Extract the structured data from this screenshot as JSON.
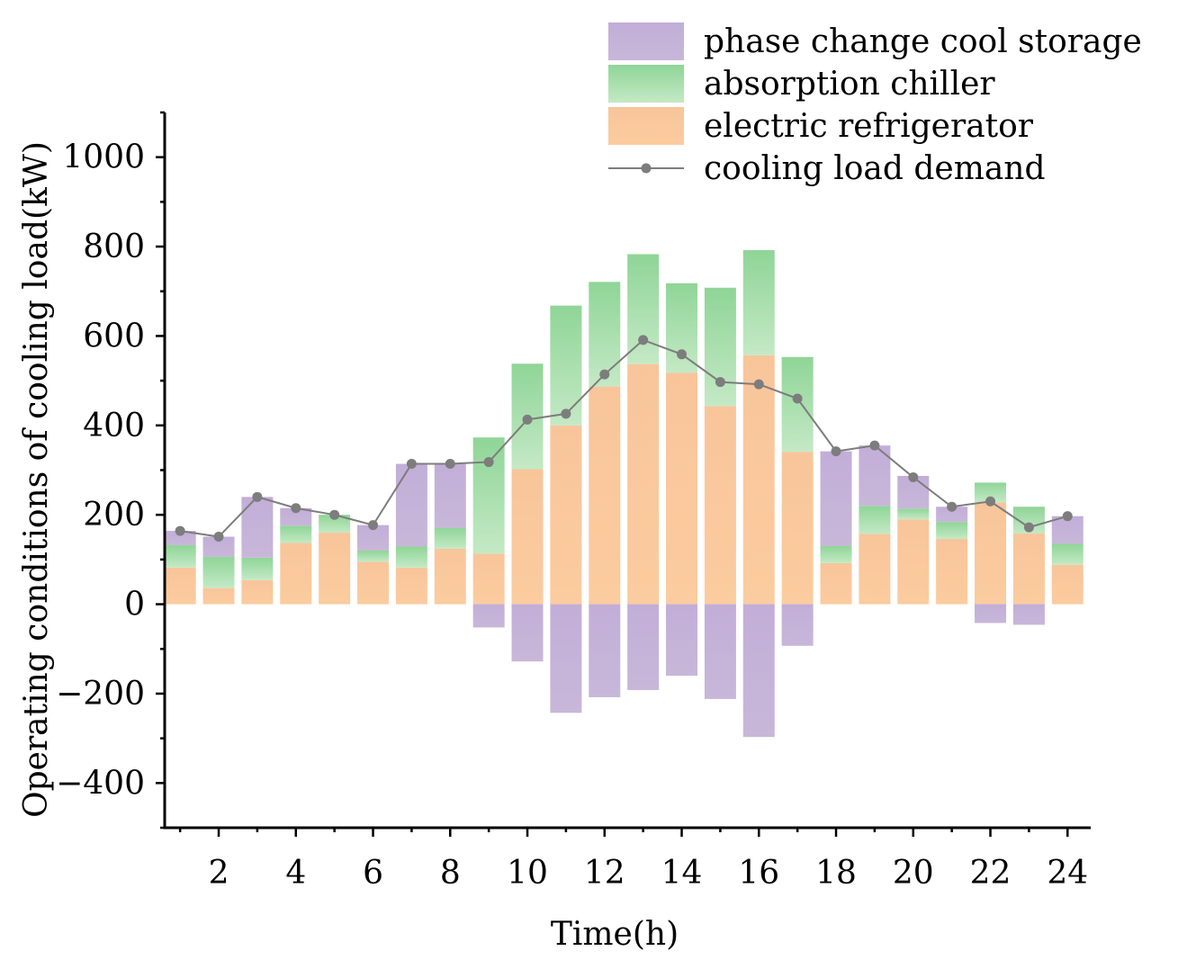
{
  "chart_data": {
    "type": "bar",
    "stacked": true,
    "xlabel": "Time(h)",
    "ylabel": "Operating conditions of cooling load(kW)",
    "xlim": [
      0.6,
      24.6
    ],
    "ylim": [
      -500,
      1100
    ],
    "x": [
      1,
      2,
      3,
      4,
      5,
      6,
      7,
      8,
      9,
      10,
      11,
      12,
      13,
      14,
      15,
      16,
      17,
      18,
      19,
      20,
      21,
      22,
      23,
      24
    ],
    "xticks": [
      2,
      4,
      6,
      8,
      10,
      12,
      14,
      16,
      18,
      20,
      22,
      24
    ],
    "xtick_labels": [
      "2",
      "4",
      "6",
      "8",
      "10",
      "12",
      "14",
      "16",
      "18",
      "20",
      "22",
      "24"
    ],
    "yticks": [
      -400,
      -200,
      0,
      200,
      400,
      600,
      800,
      1000
    ],
    "ytick_labels": [
      "−400",
      "−200",
      "0",
      "200",
      "400",
      "600",
      "800",
      "1000"
    ],
    "legend_position": "top-right",
    "series": [
      {
        "name": "electric refrigerator",
        "kind": "bar",
        "color": "#f9c89b",
        "values": [
          82,
          36,
          54,
          137,
          160,
          95,
          82,
          124,
          113,
          302,
          400,
          487,
          537,
          518,
          443,
          557,
          341,
          92,
          157,
          190,
          146,
          228,
          158,
          88
        ]
      },
      {
        "name": "absorption chiller",
        "kind": "bar",
        "color": "#9ed8a0",
        "values": [
          50,
          70,
          50,
          38,
          40,
          25,
          47,
          47,
          260,
          236,
          268,
          234,
          246,
          200,
          265,
          235,
          212,
          38,
          63,
          24,
          38,
          44,
          60,
          47
        ]
      },
      {
        "name": "phase change cool storage",
        "kind": "bar",
        "color": "#c5b3d8",
        "values": [
          32,
          45,
          136,
          40,
          0,
          57,
          185,
          143,
          -52,
          -128,
          -243,
          -208,
          -192,
          -160,
          -212,
          -297,
          -93,
          212,
          135,
          73,
          34,
          -42,
          -46,
          62
        ]
      },
      {
        "name": "cooling load demand",
        "kind": "line",
        "color": "#7d7d7d",
        "values": [
          164,
          151,
          240,
          215,
          200,
          177,
          314,
          314,
          318,
          413,
          426,
          514,
          591,
          559,
          497,
          492,
          460,
          342,
          355,
          284,
          218,
          230,
          172,
          197
        ]
      }
    ],
    "legend": [
      {
        "label": "phase change cool storage",
        "kind": "bar",
        "color": "#c5b3d8"
      },
      {
        "label": "absorption chiller",
        "kind": "bar",
        "color": "#9ed8a0"
      },
      {
        "label": "electric refrigerator",
        "kind": "bar",
        "color": "#f9c89b"
      },
      {
        "label": "cooling load demand",
        "kind": "line",
        "color": "#7d7d7d"
      }
    ]
  }
}
